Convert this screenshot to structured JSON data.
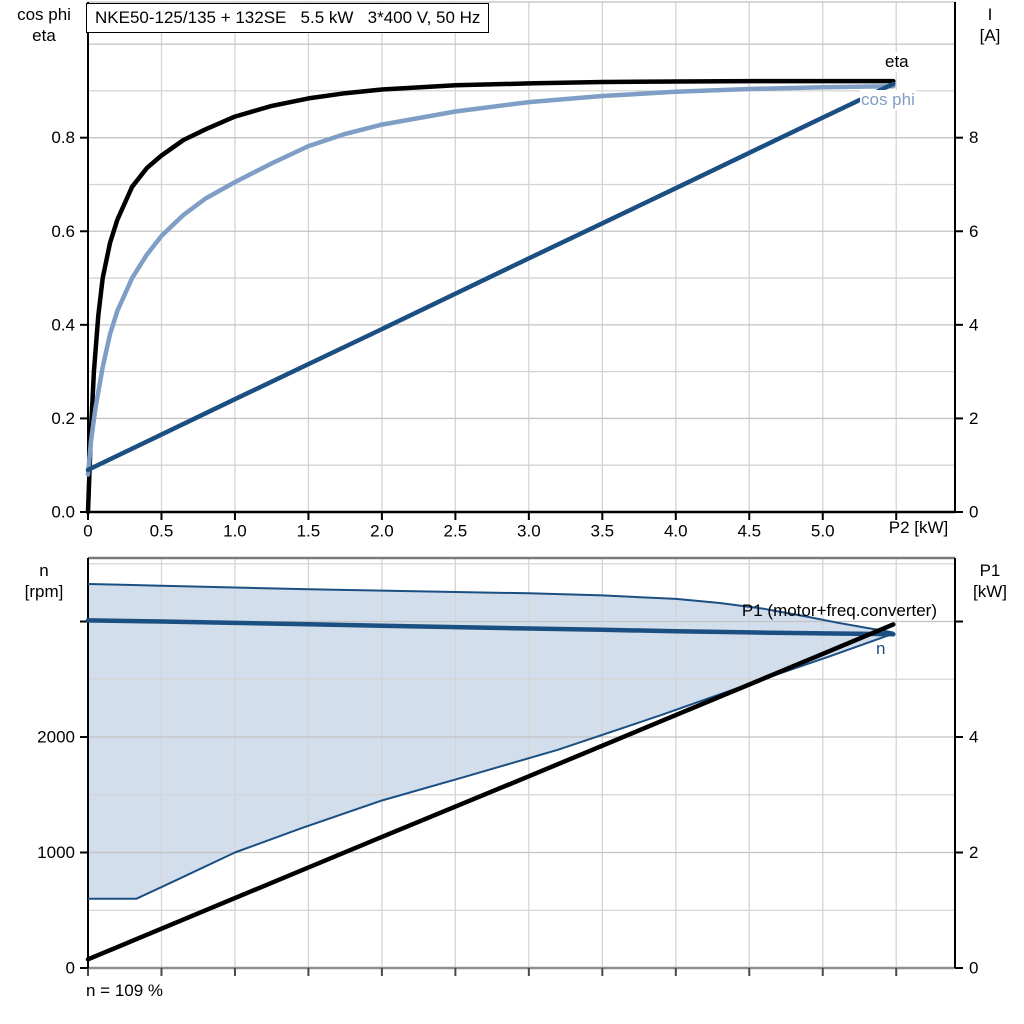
{
  "title_box": {
    "text": "NKE50-125/135 + 132SE   5.5 kW   3*400 V, 50 Hz"
  },
  "footnote": {
    "text": "n = 109 %"
  },
  "axis_titles": {
    "top_left": {
      "line1": "cos phi",
      "line2": "eta"
    },
    "top_right": {
      "line1": "I",
      "line2": "[A]"
    },
    "bottom_left": {
      "line1": "n",
      "line2": "[rpm]"
    },
    "bottom_right": {
      "line1": "P1",
      "line2": "[kW]"
    }
  },
  "curve_labels": {
    "eta": "eta",
    "cos_phi": "cos phi",
    "p1": "P1 (motor+freq.converter)",
    "n": "n"
  },
  "x_axis_label": "P2 [kW]",
  "colors": {
    "eta": "#000000",
    "cos_phi": "#7f9ec5",
    "current": "#1b4f82",
    "n": "#1b4f82",
    "p1": "#000000",
    "band_fill": "#d2deec",
    "band_edge": "#1b4f82",
    "grid": "#d4d4d4",
    "grid_major": "#c3c3c3",
    "axis": "#000000"
  },
  "chart_data": [
    {
      "type": "line",
      "panel": "top",
      "title": "NKE50-125/135 + 132SE   5.5 kW   3*400 V, 50 Hz",
      "x_axis": {
        "label": "P2 [kW]",
        "min": 0,
        "max": 5.9,
        "tick_step": 0.5,
        "tick_max": 5.5,
        "show_labels": true,
        "tick_labels": [
          "0",
          "0.5",
          "1.0",
          "1.5",
          "2.0",
          "2.5",
          "3.0",
          "3.5",
          "4.0",
          "4.5",
          "5.0"
        ]
      },
      "y_left": {
        "title": "cos phi / eta",
        "min": 0,
        "max": 1.09,
        "grid_step": 0.1,
        "major_step": 0.2,
        "tick_values": [
          0,
          0.2,
          0.4,
          0.6,
          0.8
        ],
        "tick_labels": [
          "0.0",
          "0.2",
          "0.4",
          "0.6",
          "0.8"
        ],
        "extra_ticks": []
      },
      "y_right": {
        "title": "I [A]",
        "min": 0,
        "max": 10.9,
        "tick_values": [
          0,
          2,
          4,
          6,
          8
        ],
        "tick_labels": [
          "0",
          "2",
          "4",
          "6",
          "8"
        ],
        "extra_ticks": []
      },
      "series": [
        {
          "name": "eta",
          "axis": "left",
          "color_key": "eta",
          "width": 4.5,
          "points": [
            [
              0,
              0
            ],
            [
              0.02,
              0.17
            ],
            [
              0.04,
              0.3
            ],
            [
              0.07,
              0.42
            ],
            [
              0.1,
              0.5
            ],
            [
              0.15,
              0.575
            ],
            [
              0.2,
              0.625
            ],
            [
              0.3,
              0.695
            ],
            [
              0.4,
              0.735
            ],
            [
              0.5,
              0.762
            ],
            [
              0.65,
              0.795
            ],
            [
              0.8,
              0.818
            ],
            [
              1.0,
              0.845
            ],
            [
              1.25,
              0.868
            ],
            [
              1.5,
              0.884
            ],
            [
              1.75,
              0.895
            ],
            [
              2.0,
              0.903
            ],
            [
              2.5,
              0.912
            ],
            [
              3.0,
              0.916
            ],
            [
              3.5,
              0.919
            ],
            [
              4.0,
              0.92
            ],
            [
              4.5,
              0.921
            ],
            [
              5.0,
              0.921
            ],
            [
              5.48,
              0.921
            ]
          ]
        },
        {
          "name": "cos phi",
          "axis": "left",
          "color_key": "cos_phi",
          "width": 4.5,
          "points": [
            [
              0,
              0.08
            ],
            [
              0.02,
              0.15
            ],
            [
              0.05,
              0.22
            ],
            [
              0.1,
              0.31
            ],
            [
              0.15,
              0.38
            ],
            [
              0.2,
              0.43
            ],
            [
              0.3,
              0.5
            ],
            [
              0.4,
              0.55
            ],
            [
              0.5,
              0.59
            ],
            [
              0.65,
              0.635
            ],
            [
              0.8,
              0.67
            ],
            [
              1.0,
              0.705
            ],
            [
              1.25,
              0.745
            ],
            [
              1.5,
              0.782
            ],
            [
              1.75,
              0.808
            ],
            [
              2.0,
              0.828
            ],
            [
              2.5,
              0.856
            ],
            [
              3.0,
              0.876
            ],
            [
              3.5,
              0.889
            ],
            [
              4.0,
              0.898
            ],
            [
              4.5,
              0.904
            ],
            [
              5.0,
              0.908
            ],
            [
              5.48,
              0.91
            ]
          ]
        },
        {
          "name": "I",
          "axis": "right",
          "color_key": "current",
          "width": 4.5,
          "points": [
            [
              0,
              0.9
            ],
            [
              1,
              2.41
            ],
            [
              2,
              3.91
            ],
            [
              3,
              5.42
            ],
            [
              4,
              6.92
            ],
            [
              5,
              8.43
            ],
            [
              5.48,
              9.15
            ]
          ]
        }
      ]
    },
    {
      "type": "line",
      "panel": "bottom",
      "title": "",
      "x_axis": {
        "label": "",
        "min": 0,
        "max": 5.9,
        "tick_step": 0.5,
        "tick_max": 5.5,
        "show_labels": false,
        "tick_labels": []
      },
      "y_left": {
        "title": "n [rpm]",
        "min": 0,
        "max": 3550,
        "grid_step": 500,
        "major_step": 1000,
        "tick_values": [
          0,
          1000,
          2000
        ],
        "tick_labels": [
          "0",
          "1000",
          "2000"
        ],
        "extra_ticks": [
          3000
        ]
      },
      "y_right": {
        "title": "P1 [kW]",
        "min": 0,
        "max": 7.1,
        "tick_values": [
          0,
          2,
          4
        ],
        "tick_labels": [
          "0",
          "2",
          "4"
        ],
        "extra_ticks": [
          6
        ]
      },
      "band": {
        "axis": "left",
        "upper": [
          [
            0,
            3325
          ],
          [
            0.5,
            3310
          ],
          [
            1,
            3295
          ],
          [
            1.5,
            3280
          ],
          [
            2,
            3268
          ],
          [
            2.5,
            3256
          ],
          [
            3,
            3244
          ],
          [
            3.5,
            3226
          ],
          [
            4,
            3196
          ],
          [
            4.3,
            3160
          ],
          [
            4.6,
            3110
          ],
          [
            4.9,
            3040
          ],
          [
            5.1,
            2990
          ],
          [
            5.3,
            2945
          ],
          [
            5.48,
            2905
          ]
        ],
        "lower": [
          [
            0,
            600
          ],
          [
            0.33,
            600
          ],
          [
            0.6,
            760
          ],
          [
            1.0,
            1000
          ],
          [
            1.45,
            1210
          ],
          [
            2.0,
            1450
          ],
          [
            2.55,
            1650
          ],
          [
            3.2,
            1890
          ],
          [
            3.9,
            2190
          ],
          [
            4.5,
            2460
          ],
          [
            5.05,
            2700
          ],
          [
            5.48,
            2895
          ]
        ]
      },
      "series": [
        {
          "name": "n",
          "axis": "left",
          "color_key": "n",
          "width": 4.5,
          "points": [
            [
              0,
              3010
            ],
            [
              0.5,
              3000
            ],
            [
              1,
              2988
            ],
            [
              1.5,
              2976
            ],
            [
              2,
              2964
            ],
            [
              2.5,
              2952
            ],
            [
              3,
              2940
            ],
            [
              3.5,
              2928
            ],
            [
              4,
              2916
            ],
            [
              4.5,
              2906
            ],
            [
              5,
              2897
            ],
            [
              5.48,
              2890
            ]
          ]
        },
        {
          "name": "P1",
          "axis": "right",
          "color_key": "p1",
          "width": 4.5,
          "points": [
            [
              0,
              0.15
            ],
            [
              1,
              1.21
            ],
            [
              2,
              2.27
            ],
            [
              3,
              3.32
            ],
            [
              4,
              4.38
            ],
            [
              5,
              5.44
            ],
            [
              5.48,
              5.95
            ]
          ]
        }
      ]
    }
  ]
}
